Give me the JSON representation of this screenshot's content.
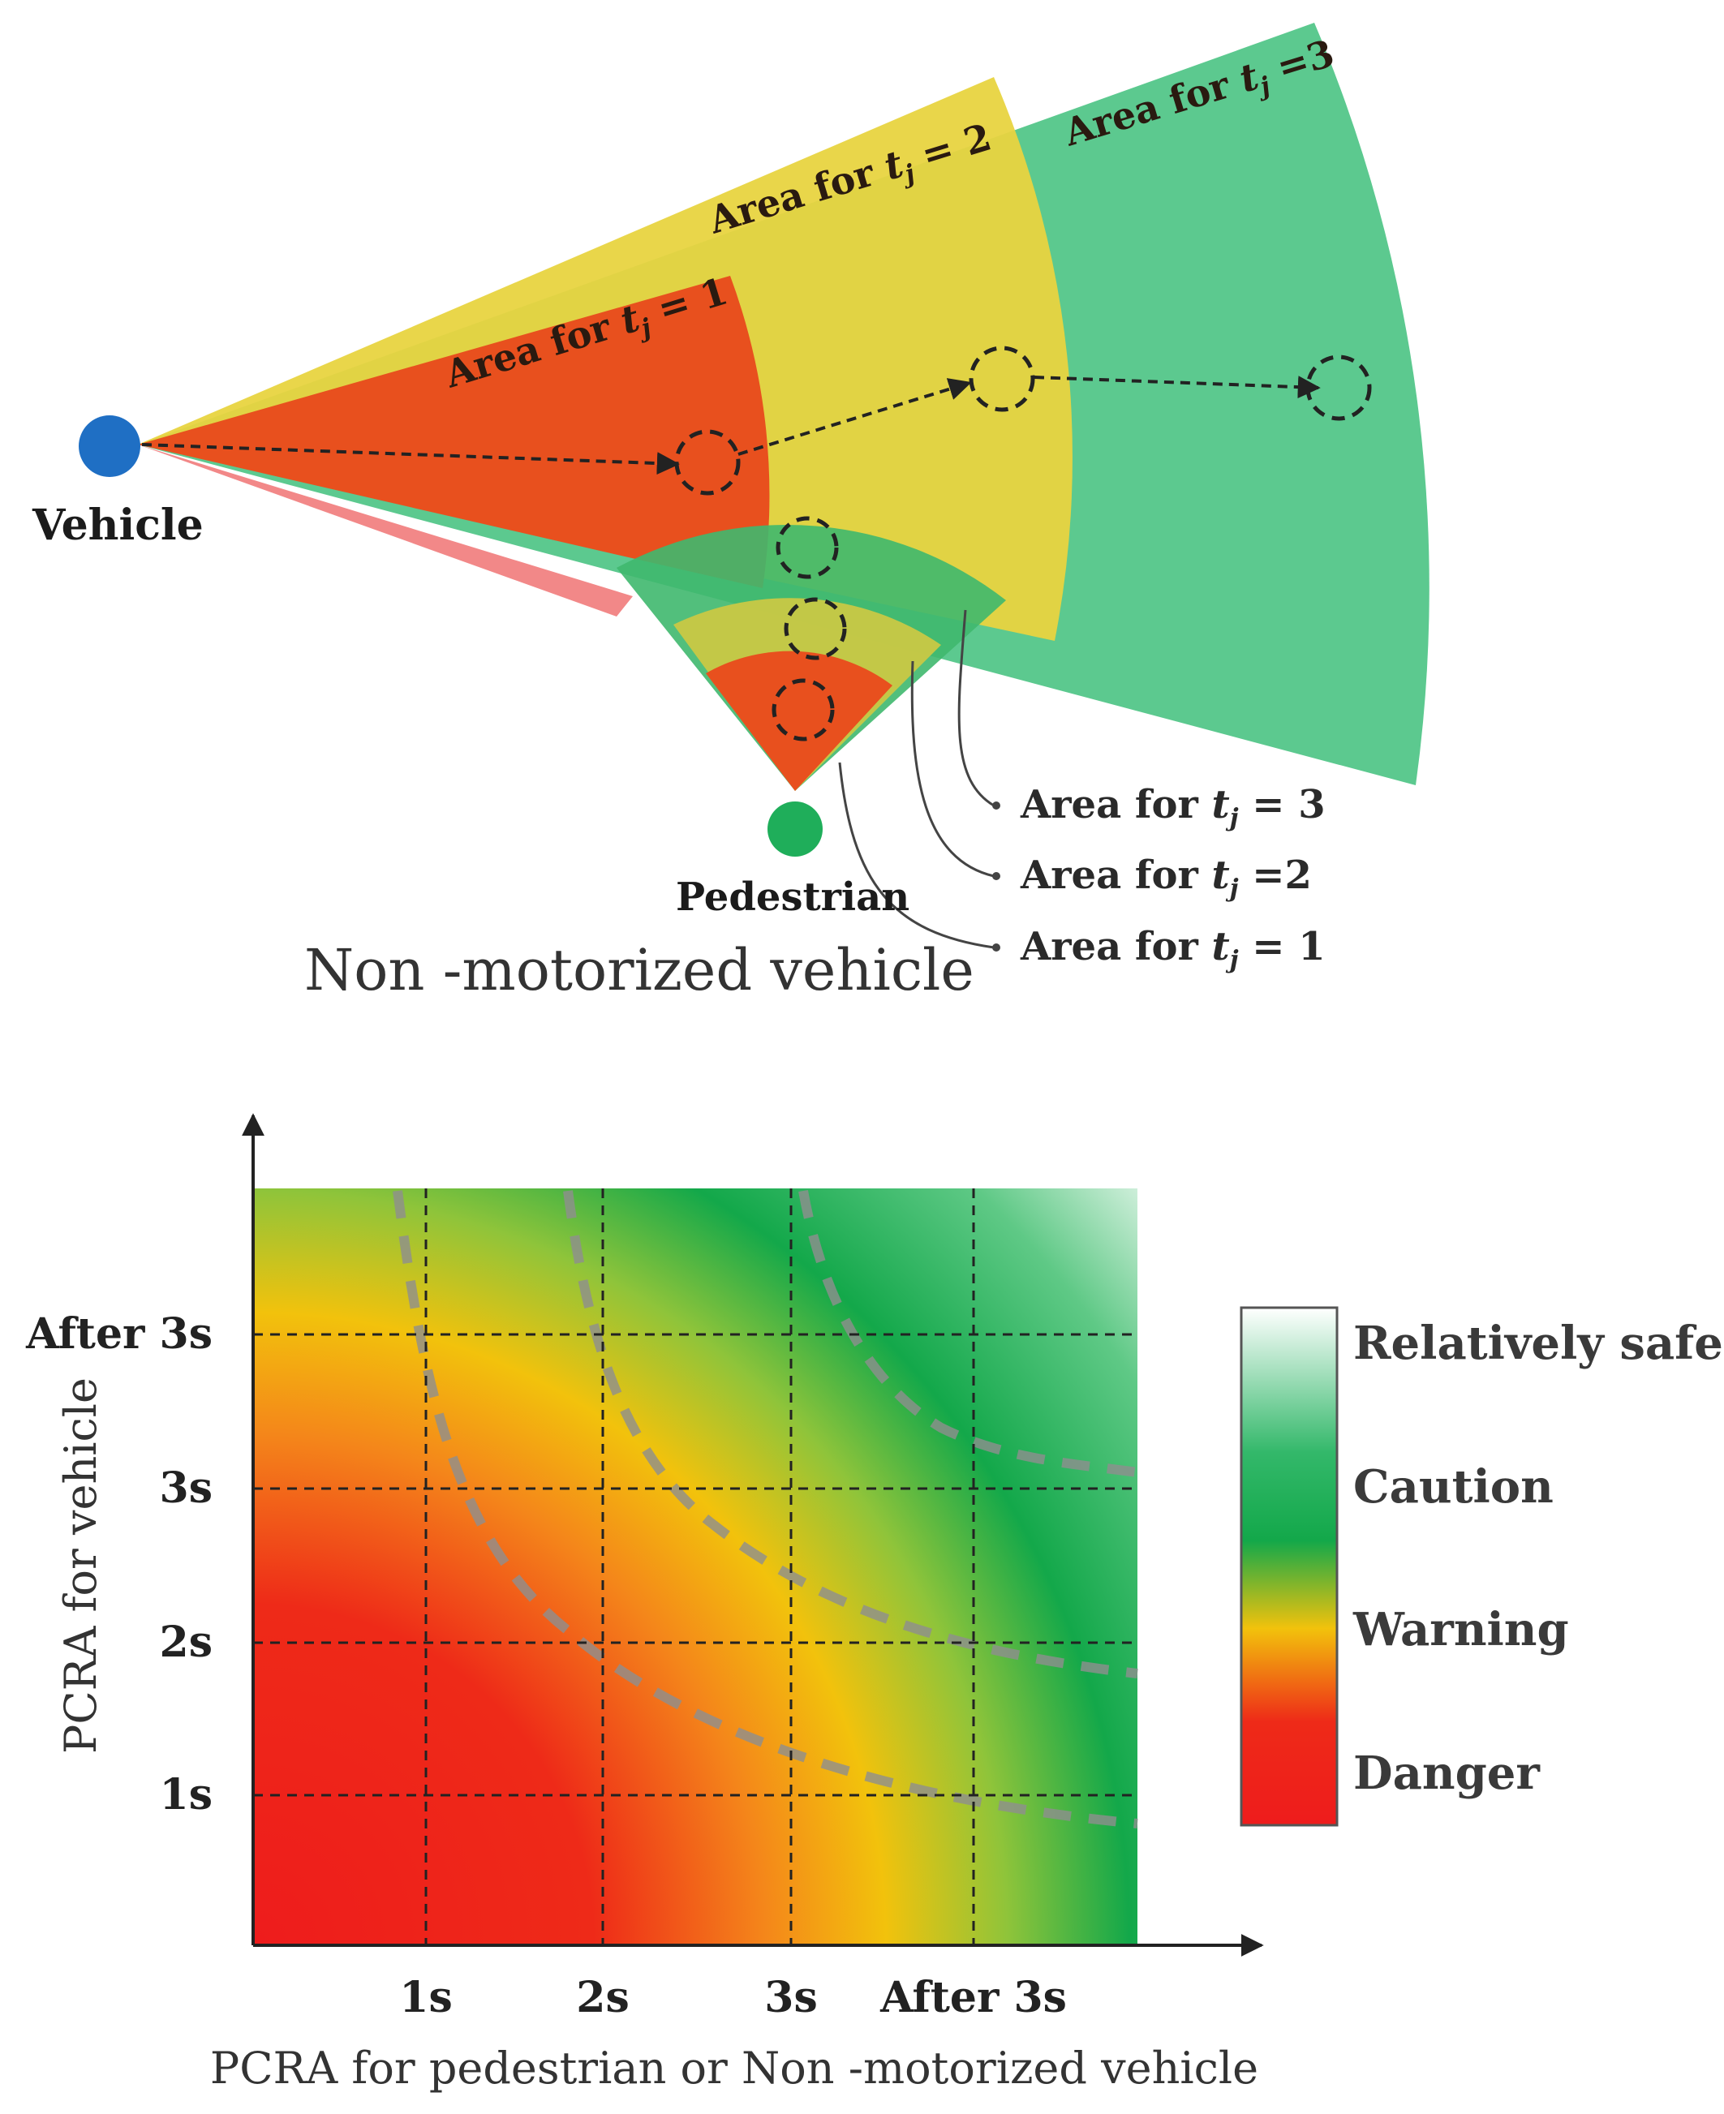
{
  "diagram": {
    "vehicle_label": "Vehicle",
    "pedestrian_label": "Pedestrian",
    "nonmotor_label": "Non -motorized vehicle",
    "vehicle_areas": [
      {
        "text": "Area for ",
        "var": "t",
        "sub": "j",
        "rest": " = 1",
        "color": "#e8501e"
      },
      {
        "text": "Area for ",
        "var": "t",
        "sub": "j",
        "rest": " = 2",
        "color": "#e8d440"
      },
      {
        "text": "Area for ",
        "var": "t",
        "sub": "j",
        "rest": " =3",
        "color": "#5cc98f"
      }
    ],
    "pedestrian_areas": [
      {
        "text": "Area for ",
        "var": "t",
        "sub": "j",
        "rest": " = 3"
      },
      {
        "text": "Area for ",
        "var": "t",
        "sub": "j",
        "rest": " =2"
      },
      {
        "text": "Area for ",
        "var": "t",
        "sub": "j",
        "rest": " = 1"
      }
    ],
    "colors": {
      "vehicle_dot": "#1f6fc4",
      "pedestrian_dot": "#1fae5a",
      "danger_red": "#e8501e",
      "warning_yellow": "#e3d23c",
      "caution_green": "#5cc98f"
    }
  },
  "heatmap": {
    "x_ticks": [
      "1s",
      "2s",
      "3s",
      "After 3s"
    ],
    "y_ticks": [
      "1s",
      "2s",
      "3s",
      "After 3s"
    ],
    "x_title": "PCRA for pedestrian or Non -motorized vehicle",
    "y_title": "PCRA for vehicle",
    "legend": {
      "labels": [
        "Relatively safe",
        "Caution",
        "Warning",
        "Danger"
      ],
      "colors": [
        "#ffffff",
        "#13a84a",
        "#f2c20c",
        "#ee1c1c"
      ]
    }
  }
}
